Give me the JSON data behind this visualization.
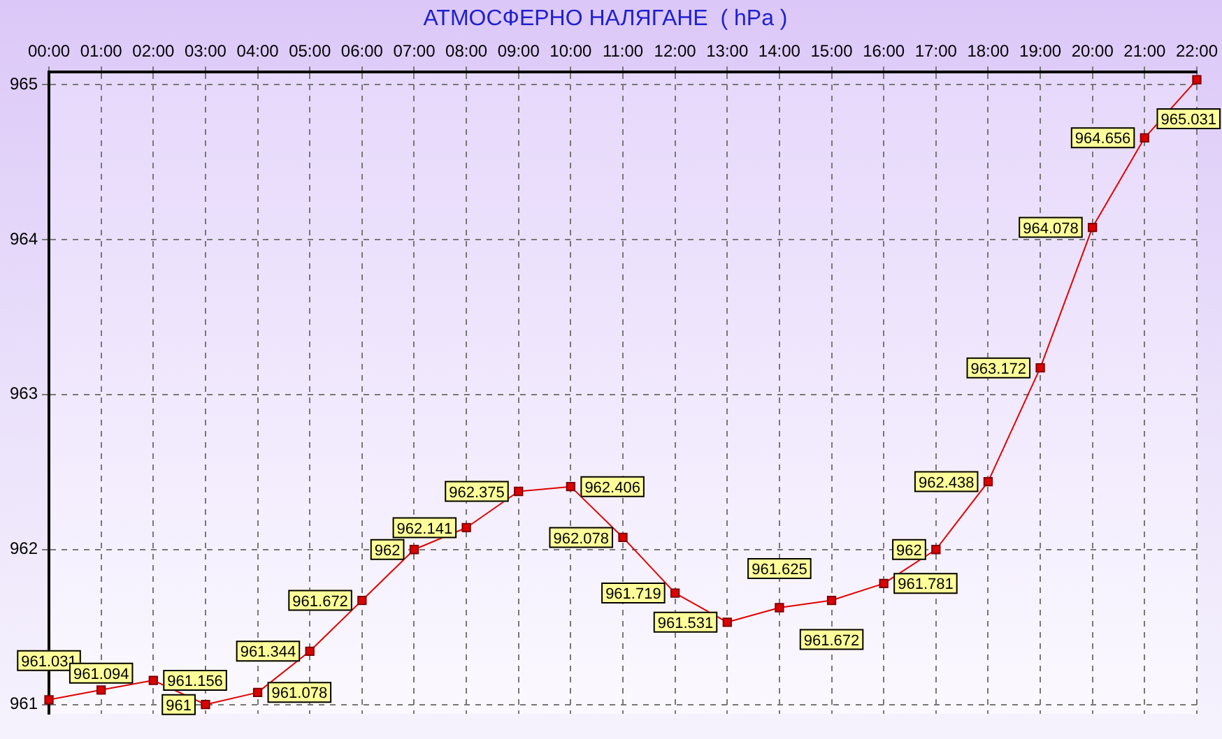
{
  "chart_data": {
    "type": "line",
    "title": "АТМОСФЕРНО НАЛЯГАНЕ  ( hPa )",
    "categories": [
      "00:00",
      "01:00",
      "02:00",
      "03:00",
      "04:00",
      "05:00",
      "06:00",
      "07:00",
      "08:00",
      "09:00",
      "10:00",
      "11:00",
      "12:00",
      "13:00",
      "14:00",
      "15:00",
      "16:00",
      "17:00",
      "18:00",
      "19:00",
      "20:00",
      "21:00",
      "22:00"
    ],
    "series": [
      {
        "color": "#e00000",
        "values": [
          961.031,
          961.094,
          961.156,
          961,
          961.078,
          961.344,
          961.672,
          962,
          962.141,
          962.375,
          962.406,
          962.078,
          961.719,
          961.531,
          961.625,
          961.672,
          961.781,
          962,
          962.438,
          963.172,
          964.078,
          964.656,
          965.031
        ]
      }
    ],
    "ylim": [
      960.94,
      965.08
    ],
    "yticks": [
      961,
      962,
      963,
      964,
      965
    ],
    "grid": true,
    "legend": false,
    "marker": "square",
    "line_style": "solid",
    "data_labels": true
  }
}
